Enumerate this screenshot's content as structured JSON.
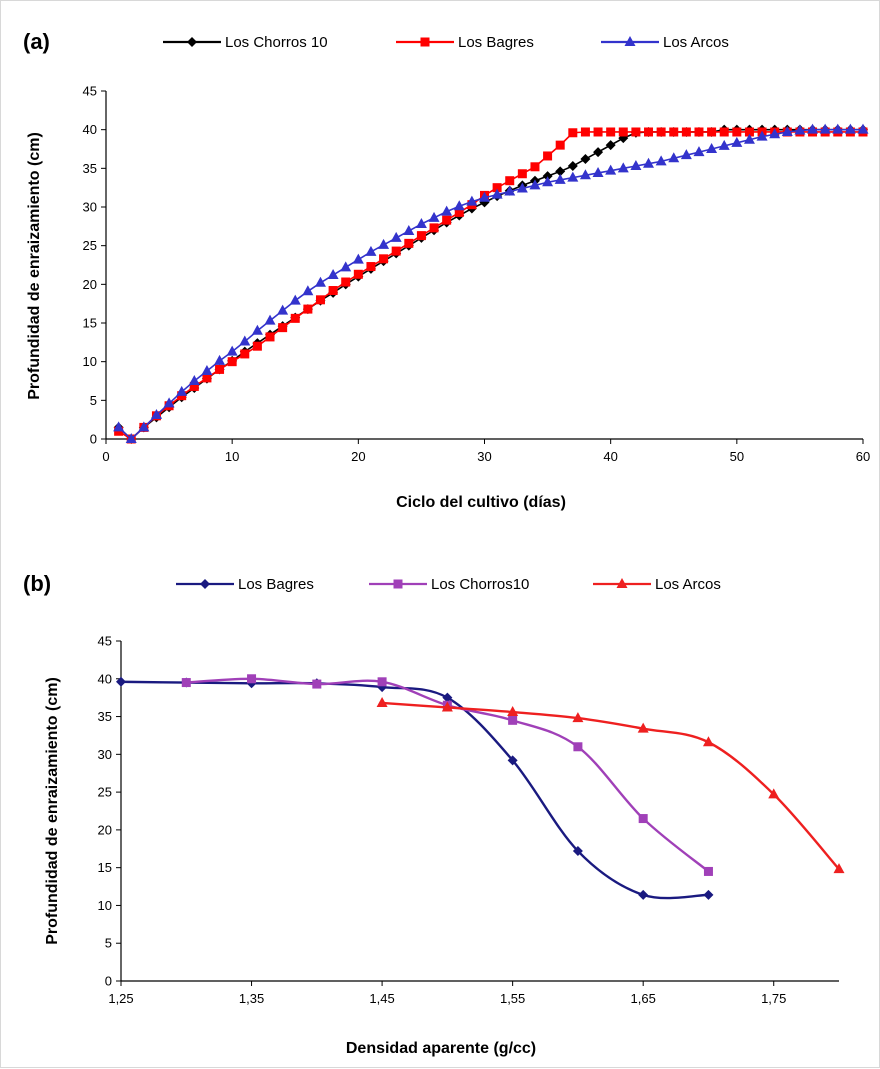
{
  "chart_data": [
    {
      "type": "line",
      "panel_label": "(a)",
      "xlabel": "Ciclo del cultivo (días)",
      "ylabel": "Profundidad de enraizamiento (cm)",
      "xlim": [
        0,
        60
      ],
      "ylim": [
        0,
        45
      ],
      "xticks": [
        0,
        10,
        20,
        30,
        40,
        50,
        60
      ],
      "xtick_labels": [
        "0",
        "10",
        "20",
        "30",
        "40",
        "50",
        "60"
      ],
      "yticks": [
        0,
        5,
        10,
        15,
        20,
        25,
        30,
        35,
        40,
        45
      ],
      "ytick_labels": [
        "0",
        "5",
        "10",
        "15",
        "20",
        "25",
        "30",
        "35",
        "40",
        "45"
      ],
      "legend_position": "top",
      "grid": false,
      "series": [
        {
          "name": "Los Chorros 10",
          "color": "#000000",
          "marker": "diamond",
          "x": [
            1,
            2,
            3,
            4,
            5,
            6,
            7,
            8,
            9,
            10,
            11,
            12,
            13,
            14,
            15,
            16,
            17,
            18,
            19,
            20,
            21,
            22,
            23,
            24,
            25,
            26,
            27,
            28,
            29,
            30,
            31,
            32,
            33,
            34,
            35,
            36,
            37,
            38,
            39,
            40,
            41,
            42,
            43,
            44,
            45,
            46,
            47,
            48,
            49,
            50,
            51,
            52,
            53,
            54,
            55,
            56,
            57,
            58,
            59,
            60
          ],
          "y": [
            1.5,
            0,
            1.5,
            2.8,
            4.1,
            5.4,
            6.6,
            7.8,
            9.0,
            10.1,
            11.3,
            12.4,
            13.5,
            14.6,
            15.7,
            16.8,
            17.9,
            18.9,
            20.0,
            21.0,
            22.0,
            23.0,
            24.0,
            25.0,
            26.0,
            27.0,
            28.0,
            28.9,
            29.8,
            30.6,
            31.4,
            32.1,
            32.8,
            33.4,
            34.0,
            34.6,
            35.3,
            36.2,
            37.1,
            38.0,
            38.9,
            39.6,
            39.7,
            39.7,
            39.7,
            39.7,
            39.7,
            39.7,
            40.0,
            40.0,
            40.0,
            40.0,
            40.0,
            40.0,
            40.0,
            40.0,
            40.0,
            40.0,
            40.0,
            40.0
          ]
        },
        {
          "name": "Los Bagres",
          "color": "#ff0000",
          "marker": "square",
          "x": [
            1,
            2,
            3,
            4,
            5,
            6,
            7,
            8,
            9,
            10,
            11,
            12,
            13,
            14,
            15,
            16,
            17,
            18,
            19,
            20,
            21,
            22,
            23,
            24,
            25,
            26,
            27,
            28,
            29,
            30,
            31,
            32,
            33,
            34,
            35,
            36,
            37,
            38,
            39,
            40,
            41,
            42,
            43,
            44,
            45,
            46,
            47,
            48,
            49,
            50,
            51,
            52,
            53,
            54,
            55,
            56,
            57,
            58,
            59,
            60
          ],
          "y": [
            1.0,
            0,
            1.5,
            3.0,
            4.3,
            5.6,
            6.8,
            7.9,
            9.0,
            10.0,
            11.0,
            12.0,
            13.2,
            14.4,
            15.6,
            16.8,
            18.0,
            19.2,
            20.3,
            21.3,
            22.3,
            23.3,
            24.3,
            25.3,
            26.3,
            27.3,
            28.3,
            29.3,
            30.3,
            31.5,
            32.5,
            33.4,
            34.3,
            35.2,
            36.6,
            38.0,
            39.6,
            39.7,
            39.7,
            39.7,
            39.7,
            39.7,
            39.7,
            39.7,
            39.7,
            39.7,
            39.7,
            39.7,
            39.7,
            39.7,
            39.7,
            39.7,
            39.7,
            39.7,
            39.7,
            39.7,
            39.7,
            39.7,
            39.7,
            39.7
          ]
        },
        {
          "name": "Los Arcos",
          "color": "#3333cc",
          "marker": "triangle",
          "x": [
            1,
            2,
            3,
            4,
            5,
            6,
            7,
            8,
            9,
            10,
            11,
            12,
            13,
            14,
            15,
            16,
            17,
            18,
            19,
            20,
            21,
            22,
            23,
            24,
            25,
            26,
            27,
            28,
            29,
            30,
            31,
            32,
            33,
            34,
            35,
            36,
            37,
            38,
            39,
            40,
            41,
            42,
            43,
            44,
            45,
            46,
            47,
            48,
            49,
            50,
            51,
            52,
            53,
            54,
            55,
            56,
            57,
            58,
            59,
            60
          ],
          "y": [
            1.5,
            0,
            1.5,
            3.1,
            4.6,
            6.1,
            7.5,
            8.8,
            10.1,
            11.3,
            12.6,
            14.0,
            15.3,
            16.6,
            17.9,
            19.1,
            20.2,
            21.2,
            22.2,
            23.2,
            24.2,
            25.1,
            26.0,
            26.9,
            27.8,
            28.6,
            29.4,
            30.1,
            30.7,
            31.2,
            31.6,
            32.0,
            32.4,
            32.8,
            33.2,
            33.5,
            33.8,
            34.1,
            34.4,
            34.7,
            35.0,
            35.3,
            35.6,
            35.9,
            36.3,
            36.7,
            37.1,
            37.5,
            37.9,
            38.3,
            38.7,
            39.1,
            39.4,
            39.7,
            39.9,
            40.0,
            40.0,
            40.0,
            40.0,
            40.0
          ]
        }
      ]
    },
    {
      "type": "line",
      "panel_label": "(b)",
      "xlabel": "Densidad aparente (g/cc)",
      "ylabel": "Profundidad de enraizamiento (cm)",
      "xlim": [
        1.25,
        1.8
      ],
      "ylim": [
        0,
        45
      ],
      "xticks": [
        1.25,
        1.35,
        1.45,
        1.55,
        1.65,
        1.75
      ],
      "xtick_labels": [
        "1,25",
        "1,35",
        "1,45",
        "1,55",
        "1,65",
        "1,75"
      ],
      "yticks": [
        0,
        5,
        10,
        15,
        20,
        25,
        30,
        35,
        40,
        45
      ],
      "ytick_labels": [
        "0",
        "5",
        "10",
        "15",
        "20",
        "25",
        "30",
        "35",
        "40",
        "45"
      ],
      "legend_position": "top",
      "grid": false,
      "series": [
        {
          "name": "Los Bagres",
          "color": "#1a1a80",
          "marker": "diamond",
          "x": [
            1.25,
            1.3,
            1.35,
            1.4,
            1.45,
            1.5,
            1.55,
            1.6,
            1.65,
            1.7
          ],
          "y": [
            39.6,
            39.5,
            39.4,
            39.4,
            38.9,
            37.5,
            29.2,
            17.2,
            11.4,
            11.4
          ]
        },
        {
          "name": "Los Chorros10",
          "color": "#a040b8",
          "marker": "square",
          "x": [
            1.3,
            1.35,
            1.4,
            1.45,
            1.5,
            1.55,
            1.6,
            1.65,
            1.7
          ],
          "y": [
            39.5,
            40.0,
            39.3,
            39.6,
            36.5,
            34.5,
            31.0,
            21.5,
            14.5
          ]
        },
        {
          "name": "Los Arcos",
          "color": "#ee2020",
          "marker": "triangle",
          "x": [
            1.45,
            1.5,
            1.55,
            1.6,
            1.65,
            1.7,
            1.75,
            1.8
          ],
          "y": [
            36.8,
            36.2,
            35.6,
            34.8,
            33.4,
            31.6,
            24.7,
            14.8
          ]
        }
      ]
    }
  ]
}
